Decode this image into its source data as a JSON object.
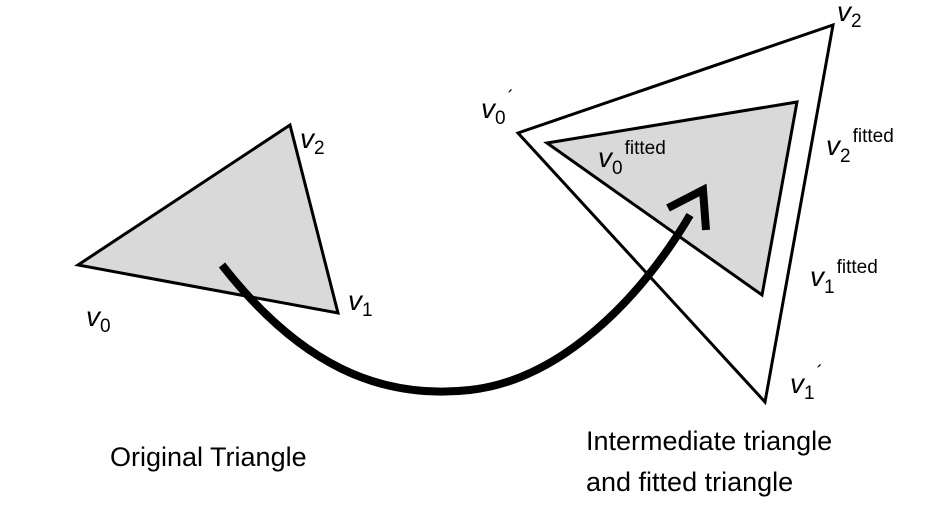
{
  "colors": {
    "stroke": "#000000",
    "fill_triangle": "#d9d9d9",
    "fill_intermediate": "#ffffff",
    "background": "#ffffff"
  },
  "original": {
    "v0": {
      "base": "v",
      "sub": "0"
    },
    "v1": {
      "base": "v",
      "sub": "1"
    },
    "v2": {
      "base": "v",
      "sub": "2"
    },
    "caption": "Original Triangle"
  },
  "intermediate": {
    "v0": {
      "base": "v",
      "sub": "0",
      "prime": "´"
    },
    "v1": {
      "base": "v",
      "sub": "1",
      "prime": "´"
    },
    "v2": {
      "base": "v",
      "sub": "2",
      "prime": "´"
    }
  },
  "fitted": {
    "v0": {
      "base": "v",
      "sub": "0",
      "sup": "fitted"
    },
    "v1": {
      "base": "v",
      "sub": "1",
      "sup": "fitted"
    },
    "v2": {
      "base": "v",
      "sub": "2",
      "sup": "fitted"
    }
  },
  "caption_right": {
    "line1": "Intermediate triangle",
    "line2": "and fitted triangle"
  }
}
